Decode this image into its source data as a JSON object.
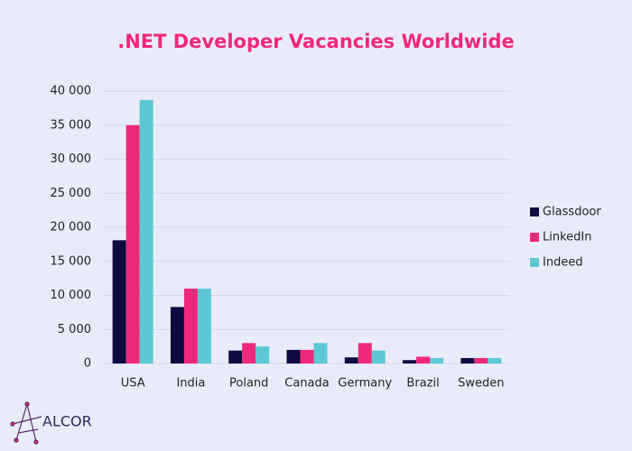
{
  "chart_data": {
    "type": "bar",
    "title": ".NET Developer Vacancies Worldwide",
    "categories": [
      "USA",
      "India",
      "Poland",
      "Canada",
      "Germany",
      "Brazil",
      "Sweden"
    ],
    "series": [
      {
        "name": "Glassdoor",
        "color": "#0d0b3f",
        "values": [
          18100,
          8300,
          1900,
          2000,
          900,
          500,
          800
        ]
      },
      {
        "name": "LinkedIn",
        "color": "#f0287a",
        "values": [
          35000,
          11000,
          3000,
          2000,
          3000,
          1000,
          800
        ]
      },
      {
        "name": "Indeed",
        "color": "#5cc8d4",
        "values": [
          38700,
          11000,
          2500,
          3000,
          1900,
          800,
          800
        ]
      }
    ],
    "ylim": [
      0,
      40000
    ],
    "yticks": [
      0,
      {
        "value": 5000,
        "label": "5 000"
      },
      {
        "value": 10000,
        "label": "10 000"
      },
      {
        "value": 15000,
        "label": "15 000"
      },
      {
        "value": 20000,
        "label": "20 000"
      },
      {
        "value": 25000,
        "label": "25 000"
      },
      {
        "value": 30000,
        "label": "30 000"
      },
      {
        "value": 35000,
        "label": "35 000"
      },
      {
        "value": 40000,
        "label": "40 000"
      }
    ],
    "grid": true,
    "legend": "right"
  },
  "brand": "ALCOR"
}
